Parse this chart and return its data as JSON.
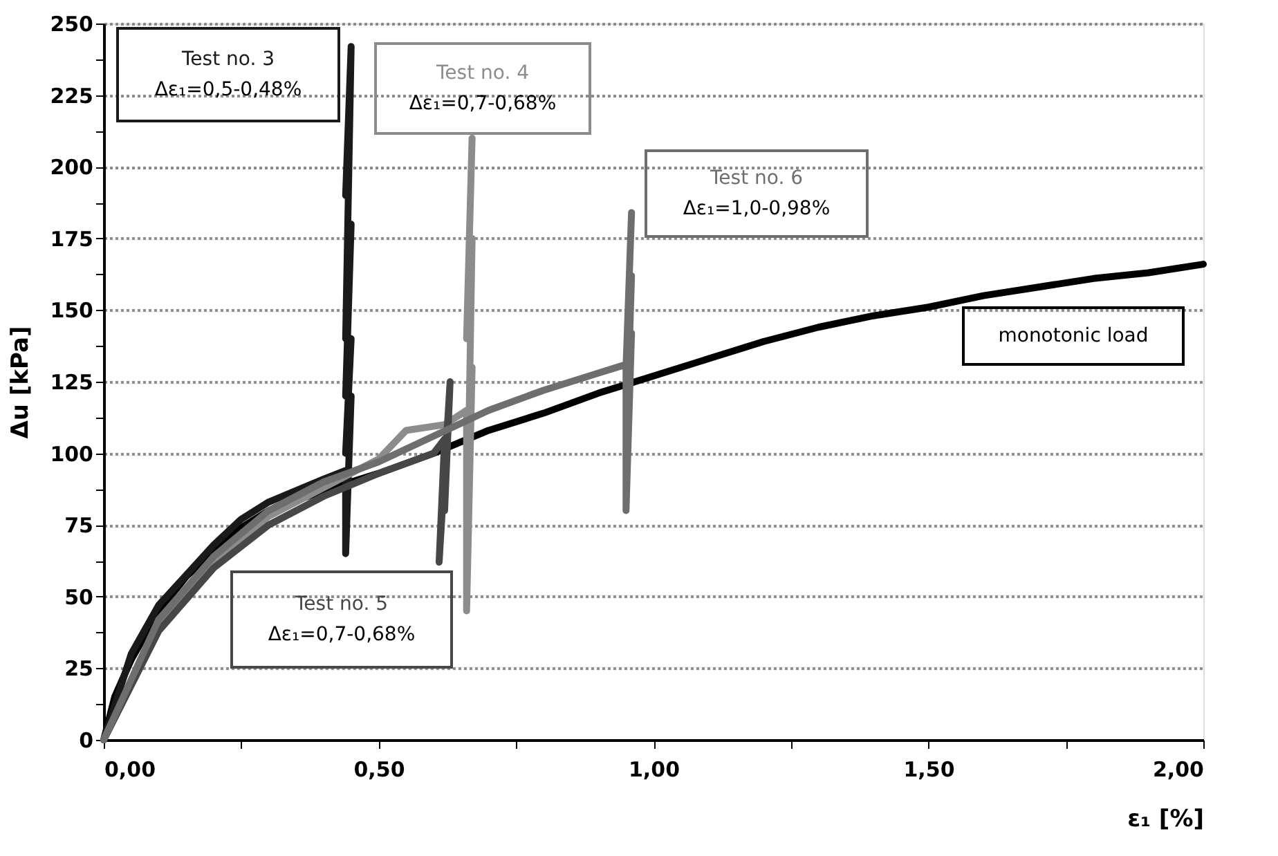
{
  "chart_data": {
    "type": "line",
    "xlabel": "ε₁ [%]",
    "ylabel": "Δu  [kPa]",
    "xlim": [
      0,
      2.0
    ],
    "ylim": [
      0,
      250
    ],
    "xticks": [
      {
        "value": 0,
        "label": "0,00"
      },
      {
        "value": 0.25,
        "label": null
      },
      {
        "value": 0.5,
        "label": "0,50"
      },
      {
        "value": 0.75,
        "label": null
      },
      {
        "value": 1.0,
        "label": "1,00"
      },
      {
        "value": 1.25,
        "label": null
      },
      {
        "value": 1.5,
        "label": "1,50"
      },
      {
        "value": 1.75,
        "label": null
      },
      {
        "value": 2.0,
        "label": "2,00"
      }
    ],
    "yticks": [
      0,
      {
        "value": 12.5,
        "label": null
      },
      25,
      {
        "value": 37.5,
        "label": null
      },
      50,
      {
        "value": 62.5,
        "label": null
      },
      75,
      {
        "value": 87.5,
        "label": null
      },
      100,
      {
        "value": 112.5,
        "label": null
      },
      125,
      {
        "value": 137.5,
        "label": null
      },
      150,
      {
        "value": 162.5,
        "label": null
      },
      175,
      {
        "value": 187.5,
        "label": null
      },
      200,
      {
        "value": 212.5,
        "label": null
      },
      225,
      {
        "value": 237.5,
        "label": null
      },
      250
    ],
    "grid": "y",
    "legend": false,
    "line_style": "solid",
    "marker": "none",
    "series": [
      {
        "name": "monotonic load",
        "color": "#000000",
        "x": [
          0,
          0.02,
          0.05,
          0.1,
          0.15,
          0.2,
          0.25,
          0.3,
          0.4,
          0.5,
          0.6,
          0.7,
          0.8,
          0.9,
          1.0,
          1.1,
          1.2,
          1.3,
          1.4,
          1.5,
          1.6,
          1.7,
          1.8,
          1.9,
          2.0
        ],
        "values": [
          0,
          15,
          28,
          45,
          57,
          66,
          74,
          80,
          87,
          93,
          100,
          108,
          114,
          121,
          127,
          133,
          139,
          144,
          148,
          151,
          155,
          158,
          161,
          163,
          166
        ]
      },
      {
        "name": "Test no. 3",
        "color": "#1a1a1a",
        "x": [
          0,
          0.05,
          0.1,
          0.2,
          0.25,
          0.3,
          0.4,
          0.44,
          0.44,
          0.45,
          0.44,
          0.45,
          0.44,
          0.45,
          0.44,
          0.45,
          0.44
        ],
        "values": [
          0,
          30,
          47,
          68,
          77,
          83,
          91,
          94,
          65,
          120,
          100,
          140,
          120,
          180,
          140,
          242,
          190
        ]
      },
      {
        "name": "Test no. 4",
        "color": "#8c8c8c",
        "x": [
          0,
          0.1,
          0.2,
          0.3,
          0.4,
          0.5,
          0.55,
          0.62,
          0.66,
          0.66,
          0.67,
          0.66,
          0.67,
          0.66,
          0.67
        ],
        "values": [
          0,
          40,
          62,
          78,
          88,
          98,
          108,
          110,
          115,
          45,
          130,
          60,
          175,
          140,
          210
        ]
      },
      {
        "name": "Test no. 5",
        "color": "#474747",
        "x": [
          0,
          0.1,
          0.2,
          0.3,
          0.4,
          0.5,
          0.6,
          0.62,
          0.61,
          0.63,
          0.62
        ],
        "values": [
          0,
          38,
          60,
          75,
          85,
          93,
          100,
          105,
          62,
          125,
          80
        ]
      },
      {
        "name": "Test no. 6",
        "color": "#6e6e6e",
        "x": [
          0,
          0.1,
          0.2,
          0.3,
          0.4,
          0.5,
          0.6,
          0.7,
          0.8,
          0.9,
          0.95,
          0.95,
          0.96,
          0.95,
          0.96,
          0.95,
          0.96
        ],
        "values": [
          0,
          42,
          64,
          80,
          90,
          97,
          106,
          115,
          122,
          128,
          131,
          80,
          142,
          100,
          162,
          130,
          184
        ]
      }
    ],
    "annotations": [
      "Δε₁=0,5-0,48%",
      "Δε₁=0,7-0,68%",
      "Δε₁=0,7-0,68%",
      "Δε₁=1,0-0,98%"
    ]
  }
}
